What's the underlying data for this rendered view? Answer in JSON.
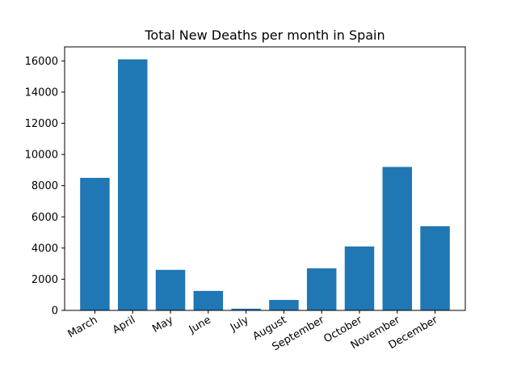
{
  "chart_data": {
    "type": "bar",
    "title": "Total New Deaths per month in Spain",
    "xlabel": "",
    "ylabel": "",
    "categories": [
      "March",
      "April",
      "May",
      "June",
      "July",
      "August",
      "September",
      "October",
      "November",
      "December"
    ],
    "values": [
      8500,
      16100,
      2600,
      1250,
      110,
      670,
      2700,
      4100,
      9200,
      5400
    ],
    "ylim": [
      0,
      16900
    ],
    "yticks": [
      0,
      2000,
      4000,
      6000,
      8000,
      10000,
      12000,
      14000,
      16000
    ],
    "grid": false,
    "bar_color": "#1f77b4"
  }
}
